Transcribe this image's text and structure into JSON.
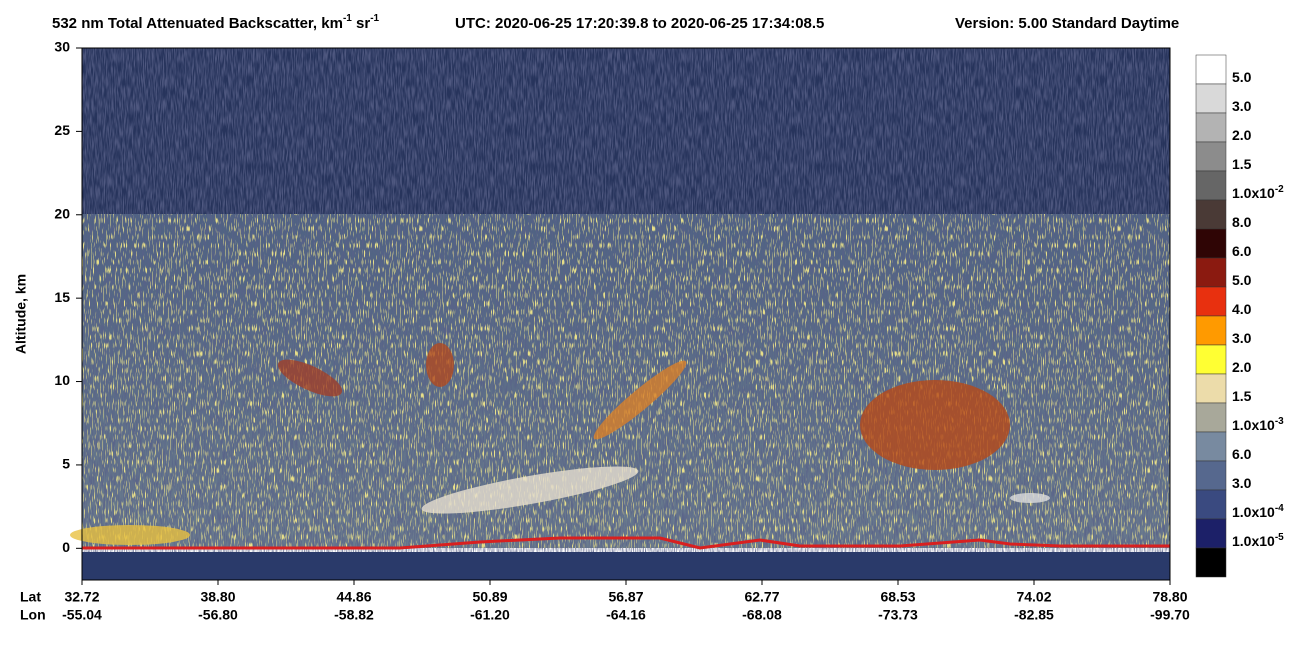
{
  "chart_data": {
    "type": "curtain",
    "title": {
      "text": "532 nm Total Attenuated Backscatter, km",
      "unit_exp1": "-1",
      "unit2": " sr",
      "unit_exp2": "-1",
      "utc": "UTC:  2020-06-25 17:20:39.8  to  2020-06-25 17:34:08.5",
      "version": "Version: 5.00  Standard  Daytime"
    },
    "y_label": "Altitude, km",
    "ylim": [
      -1.9,
      30
    ],
    "yticks": [
      0,
      5,
      10,
      15,
      20,
      25,
      30
    ],
    "x_rows": [
      {
        "name": "Lat",
        "labels": [
          "32.72",
          "38.80",
          "44.86",
          "50.89",
          "56.87",
          "62.77",
          "68.53",
          "74.02",
          "78.80"
        ]
      },
      {
        "name": "Lon",
        "labels": [
          "-55.04",
          "-56.80",
          "-58.82",
          "-61.20",
          "-64.16",
          "-68.08",
          "-73.73",
          "-82.85",
          "-99.70"
        ]
      }
    ],
    "colorbar": {
      "colors": [
        "#ffffff",
        "#d9d9d9",
        "#b3b3b3",
        "#8c8c8c",
        "#666666",
        "#4a3a36",
        "#2f0505",
        "#8b1a10",
        "#e8300f",
        "#ff9a00",
        "#ffff33",
        "#ecdcaa",
        "#a8a89a",
        "#788aa0",
        "#56688e",
        "#3a4a80",
        "#1c2068",
        "#000000"
      ],
      "labels": [
        {
          "mantissa": "5.0"
        },
        {
          "mantissa": "3.0"
        },
        {
          "mantissa": "2.0"
        },
        {
          "mantissa": "1.5"
        },
        {
          "mantissa": "1.0x10",
          "exponent": "-2"
        },
        {
          "mantissa": "8.0"
        },
        {
          "mantissa": "6.0"
        },
        {
          "mantissa": "5.0"
        },
        {
          "mantissa": "4.0"
        },
        {
          "mantissa": "3.0"
        },
        {
          "mantissa": "2.0"
        },
        {
          "mantissa": "1.5"
        },
        {
          "mantissa": "1.0x10",
          "exponent": "-3"
        },
        {
          "mantissa": "6.0"
        },
        {
          "mantissa": "3.0"
        },
        {
          "mantissa": "1.0x10",
          "exponent": "-4"
        },
        {
          "mantissa": "1.0x10",
          "exponent": "-5"
        }
      ]
    }
  }
}
